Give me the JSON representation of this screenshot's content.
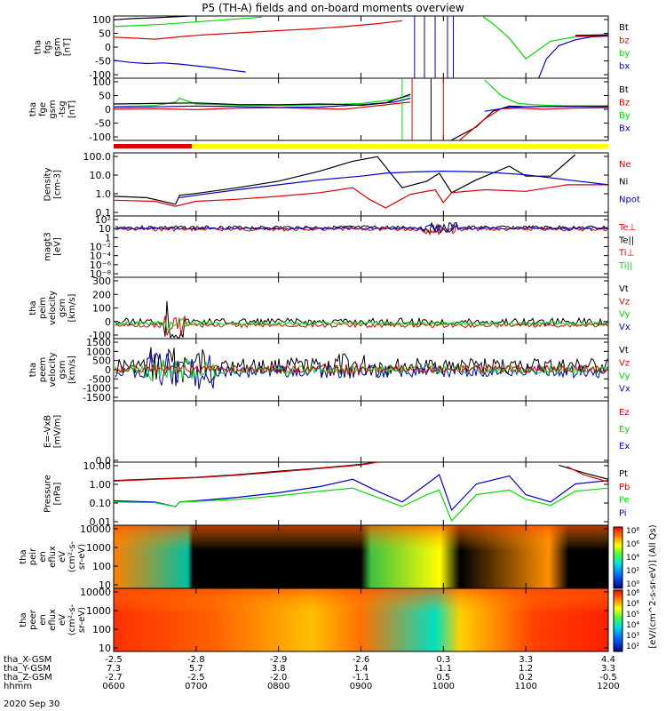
{
  "title": "P5 (TH-A) fields and on-board moments overview",
  "colors": {
    "black": "#000000",
    "red": "#e00000",
    "green": "#00dd00",
    "blue": "#0000cc",
    "yellow": "#ffff00"
  },
  "chart_data": {
    "type": "line",
    "x_ticks": [
      "0600",
      "0700",
      "0800",
      "0900",
      "1000",
      "1100",
      "1200"
    ],
    "x_range_hours": [
      6,
      12
    ],
    "date_label": "2020 Sep 30",
    "ephemeris": [
      {
        "label": "tha_X-GSM",
        "values": [
          "-2.5",
          "-2.8",
          "-2.9",
          "-2.6",
          "0.3",
          "3.3",
          "4.4"
        ]
      },
      {
        "label": "tha_Y-GSM",
        "values": [
          "7.3",
          "5.7",
          "3.8",
          "1.4",
          "-1.1",
          "1.2",
          "3.3"
        ]
      },
      {
        "label": "tha_Z-GSM",
        "values": [
          "-2.7",
          "-2.5",
          "-2.0",
          "-1.1",
          "0.5",
          "0.2",
          "-0.5"
        ]
      },
      {
        "label": "hhmm",
        "values": [
          "0600",
          "0700",
          "0800",
          "0900",
          "1000",
          "1100",
          "1200"
        ]
      }
    ],
    "panels": [
      {
        "id": "fgs",
        "ylabel": [
          "tha",
          "fgs",
          "gsm",
          "[nT]"
        ],
        "yticks": [
          "100",
          "50",
          "0",
          "-50",
          "-100"
        ],
        "ylim": [
          -100,
          100
        ],
        "legend": [
          {
            "name": "Bt",
            "color": "black"
          },
          {
            "name": "bz",
            "color": "red"
          },
          {
            "name": "by",
            "color": "green"
          },
          {
            "name": "bx",
            "color": "blue"
          }
        ],
        "series": [
          {
            "color": "black",
            "x": [
              6.0,
              6.2,
              6.5,
              6.8,
              7.0,
              7.3,
              7.6,
              7.8
            ],
            "y": [
              93,
              97,
              100,
              104,
              107,
              110,
              113,
              115
            ]
          },
          {
            "color": "green",
            "x": [
              6.0,
              6.3,
              6.6,
              6.9,
              7.2,
              7.5,
              7.8
            ],
            "y": [
              70,
              74,
              78,
              84,
              90,
              96,
              102
            ]
          },
          {
            "color": "red",
            "x": [
              6.0,
              6.3,
              6.5,
              6.8,
              7.0,
              7.3,
              7.6,
              7.8,
              8.0,
              8.4,
              8.8,
              9.2,
              9.5
            ],
            "y": [
              34,
              30,
              27,
              35,
              40,
              45,
              50,
              53,
              56,
              62,
              70,
              80,
              90
            ]
          },
          {
            "color": "blue",
            "x": [
              6.0,
              6.2,
              6.4,
              6.6,
              6.8,
              7.0,
              7.2,
              7.4,
              7.6
            ],
            "y": [
              -45,
              -52,
              -56,
              -54,
              -58,
              -64,
              -70,
              -78,
              -85
            ]
          },
          {
            "color": "green",
            "x": [
              10.2,
              10.4,
              10.6,
              10.8,
              11.0,
              11.1,
              11.3,
              11.6,
              12.0
            ],
            "y": [
              160,
              120,
              80,
              30,
              -40,
              -20,
              20,
              35,
              38
            ]
          },
          {
            "color": "blue",
            "x": [
              11.15,
              11.25,
              11.4,
              11.6,
              11.8,
              12.0
            ],
            "y": [
              -110,
              -40,
              5,
              25,
              35,
              38
            ]
          },
          {
            "color": "red",
            "x": [
              11.6,
              11.8,
              12.0
            ],
            "y": [
              38,
              39,
              40
            ]
          },
          {
            "color": "black",
            "x": [
              11.6,
              11.8,
              12.0
            ],
            "y": [
              40,
              41,
              42
            ]
          }
        ]
      },
      {
        "id": "fge",
        "ylabel": [
          "tha",
          "fge",
          "gsm",
          "-tsg",
          "[nT]"
        ],
        "yticks": [
          "100",
          "50",
          "0",
          "-50",
          "-100"
        ],
        "ylim": [
          -125,
          100
        ],
        "legend": [
          {
            "name": "Bt",
            "color": "black"
          },
          {
            "name": "Bz",
            "color": "red"
          },
          {
            "name": "By",
            "color": "green"
          },
          {
            "name": "Bx",
            "color": "blue"
          }
        ],
        "series": [
          {
            "color": "green",
            "x": [
              6.0,
              6.5,
              6.75,
              6.8,
              7.0,
              7.5,
              8.0,
              8.5,
              9.0,
              9.4,
              9.6
            ],
            "y": [
              -2,
              2,
              15,
              30,
              8,
              4,
              2,
              5,
              10,
              25,
              40
            ]
          },
          {
            "color": "blue",
            "x": [
              6.0,
              6.5,
              7.0,
              7.5,
              8.0,
              8.5,
              9.0,
              9.4,
              9.6
            ],
            "y": [
              -5,
              -3,
              0,
              -2,
              -5,
              -4,
              5,
              15,
              30
            ]
          },
          {
            "color": "red",
            "x": [
              6.0,
              6.5,
              7.0,
              7.5,
              8.0,
              8.5,
              8.8,
              9.0,
              9.3,
              9.6
            ],
            "y": [
              -12,
              -10,
              -14,
              -8,
              -6,
              -10,
              -12,
              -5,
              5,
              15
            ]
          },
          {
            "color": "black",
            "x": [
              6.0,
              6.5,
              7.0,
              7.5,
              8.0,
              8.5,
              8.8,
              9.0,
              9.3,
              9.6
            ],
            "y": [
              8,
              10,
              12,
              6,
              5,
              8,
              6,
              3,
              12,
              45
            ]
          },
          {
            "color": "green",
            "x": [
              10.5,
              10.7,
              10.9,
              11.1,
              11.5,
              12.0
            ],
            "y": [
              100,
              40,
              10,
              5,
              0,
              0
            ]
          },
          {
            "color": "black",
            "x": [
              10.1,
              10.4,
              10.6,
              10.8,
              11.0,
              11.5,
              12.0
            ],
            "y": [
              -130,
              -80,
              -20,
              0,
              -3,
              0,
              0
            ]
          },
          {
            "color": "red",
            "x": [
              10.2,
              10.5,
              10.7,
              10.9,
              11.2,
              11.6,
              12.0
            ],
            "y": [
              -130,
              -50,
              -10,
              -8,
              -12,
              -8,
              -6
            ]
          },
          {
            "color": "blue",
            "x": [
              10.5,
              10.8,
              11.2,
              11.6,
              12.0
            ],
            "y": [
              -20,
              -5,
              -2,
              -2,
              -2
            ]
          }
        ]
      },
      {
        "id": "density",
        "ylabel": [
          "Density",
          "[cm-3]"
        ],
        "yticks": [
          "100.0",
          "10.0",
          "1.0",
          "0.1"
        ],
        "ylog": true,
        "ylim": [
          0.05,
          200
        ],
        "legend": [
          {
            "name": "Ne",
            "color": "red"
          },
          {
            "name": "Ni",
            "color": "black"
          },
          {
            "name": "Npot",
            "color": "blue"
          }
        ],
        "series": [
          {
            "color": "black",
            "x": [
              6.0,
              6.4,
              6.75,
              6.8,
              7.0,
              7.5,
              8.0,
              8.5,
              8.9,
              9.2,
              9.5,
              9.8,
              9.95,
              10.1,
              10.4,
              10.8,
              11.0,
              11.3,
              11.6
            ],
            "y": [
              0.6,
              0.5,
              0.2,
              0.7,
              0.9,
              2,
              5,
              20,
              80,
              150,
              2,
              5,
              15,
              1,
              6,
              40,
              10,
              10,
              200
            ]
          },
          {
            "color": "red",
            "x": [
              6.0,
              6.5,
              6.75,
              7.0,
              7.5,
              8.0,
              8.5,
              8.9,
              9.1,
              9.3,
              9.6,
              9.9,
              10.0,
              10.1,
              10.5,
              11.0,
              11.5,
              12.0
            ],
            "y": [
              0.35,
              0.3,
              0.15,
              0.3,
              0.4,
              0.6,
              1,
              2,
              0.4,
              0.12,
              0.8,
              1.5,
              0.25,
              1,
              1.5,
              1.2,
              3,
              3
            ]
          },
          {
            "color": "blue",
            "x": [
              6.8,
              7.0,
              7.5,
              8.0,
              8.5,
              9.0,
              9.3,
              9.6,
              10.0,
              10.5,
              11.0,
              11.5,
              12.0
            ],
            "y": [
              0.5,
              0.7,
              1.5,
              3,
              6,
              10,
              15,
              18,
              20,
              18,
              12,
              6,
              3
            ]
          }
        ]
      },
      {
        "id": "magt3",
        "ylabel": [
          "magt3",
          "[eV]"
        ],
        "yticks": [
          "10²",
          "10",
          "1",
          "10⁻²",
          "10⁻⁴",
          "10⁻⁶",
          "10⁻⁸"
        ],
        "legend": [
          {
            "name": "Te⊥",
            "color": "red"
          },
          {
            "name": "Te||",
            "color": "black"
          },
          {
            "name": "Ti⊥",
            "color": "red"
          },
          {
            "name": "Ti||",
            "color": "green"
          }
        ]
      },
      {
        "id": "peim",
        "ylabel": [
          "tha",
          "peim",
          "velocity",
          "gsm",
          "[km/s]"
        ],
        "yticks": [
          "300",
          "200",
          "100",
          "0",
          "-100"
        ],
        "ylim": [
          -100,
          320
        ],
        "legend": [
          {
            "name": "Vt",
            "color": "black"
          },
          {
            "name": "Vz",
            "color": "red"
          },
          {
            "name": "Vy",
            "color": "green"
          },
          {
            "name": "Vx",
            "color": "blue"
          }
        ]
      },
      {
        "id": "peem",
        "ylabel": [
          "tha",
          "peem",
          "velocity",
          "gsm",
          "[km/s]"
        ],
        "yticks": [
          "1500",
          "1000",
          "500",
          "0",
          "-500",
          "-1000",
          "-1500"
        ],
        "ylim": [
          -1500,
          1500
        ],
        "legend": [
          {
            "name": "Vt",
            "color": "black"
          },
          {
            "name": "Vz",
            "color": "red"
          },
          {
            "name": "Vy",
            "color": "green"
          },
          {
            "name": "Vx",
            "color": "blue"
          }
        ]
      },
      {
        "id": "efield",
        "ylabel": [
          "E=-VxB",
          "[mV/m]"
        ],
        "yticks": [
          "0.0"
        ],
        "legend": [
          {
            "name": "Ez",
            "color": "red"
          },
          {
            "name": "Ey",
            "color": "green"
          },
          {
            "name": "Ex",
            "color": "blue"
          }
        ]
      },
      {
        "id": "pressure",
        "ylabel": [
          "Pressure",
          "[nPa]"
        ],
        "yticks": [
          "10.00",
          "1.00",
          "0.10",
          "0.01"
        ],
        "ylog": true,
        "ylim": [
          0.004,
          30
        ],
        "legend": [
          {
            "name": "Pt",
            "color": "black"
          },
          {
            "name": "Pb",
            "color": "red"
          },
          {
            "name": "Pe",
            "color": "green"
          },
          {
            "name": "Pi",
            "color": "blue"
          }
        ],
        "series": [
          {
            "color": "black",
            "x": [
              6.0,
              6.5,
              7.0,
              7.5,
              8.0,
              8.5,
              9.0,
              9.2
            ],
            "y": [
              2.5,
              3.2,
              4,
              6,
              10,
              16,
              28,
              40
            ]
          },
          {
            "color": "red",
            "x": [
              6.0,
              6.5,
              7.0,
              7.5,
              8.0,
              8.5,
              9.0,
              9.2
            ],
            "y": [
              2.3,
              3.0,
              3.8,
              5.5,
              9,
              15,
              26,
              38
            ]
          },
          {
            "color": "blue",
            "x": [
              6.0,
              6.5,
              6.75,
              6.8,
              7.0,
              7.5,
              8.0,
              8.5,
              8.9,
              9.2,
              9.5,
              9.8,
              9.95,
              10.1,
              10.4,
              10.8,
              11.0,
              11.3,
              11.6,
              12.0
            ],
            "y": [
              0.12,
              0.1,
              0.05,
              0.1,
              0.12,
              0.2,
              0.4,
              1,
              3,
              0.5,
              0.1,
              1.5,
              6,
              0.03,
              1.5,
              5,
              0.3,
              0.1,
              1.5,
              2.5
            ]
          },
          {
            "color": "green",
            "x": [
              6.0,
              6.5,
              6.75,
              6.8,
              7.0,
              7.5,
              8.0,
              8.5,
              8.9,
              9.2,
              9.5,
              9.8,
              9.95,
              10.1,
              10.4,
              10.8,
              11.0,
              11.3,
              11.6,
              12.0
            ],
            "y": [
              0.1,
              0.09,
              0.05,
              0.1,
              0.11,
              0.15,
              0.25,
              0.5,
              0.8,
              0.2,
              0.05,
              0.3,
              0.6,
              0.006,
              0.3,
              0.6,
              0.15,
              0.06,
              0.5,
              0.8
            ]
          },
          {
            "color": "black",
            "x": [
              11.4,
              11.7,
              12.0
            ],
            "y": [
              25,
              8,
              3
            ]
          },
          {
            "color": "red",
            "x": [
              11.5,
              11.7,
              12.0
            ],
            "y": [
              20,
              6,
              2
            ]
          }
        ]
      },
      {
        "id": "peir",
        "ylabel": [
          "tha",
          "peir",
          "en",
          "eflux",
          "eV",
          "(cm²-s-",
          "sr-eV)"
        ],
        "yticks": [
          "10000",
          "1000",
          "100",
          "10"
        ],
        "type": "heatmap"
      },
      {
        "id": "peer",
        "ylabel": [
          "tha",
          "peer",
          "en",
          "eflux",
          "eV",
          "(cm²-s-",
          "sr-eV)"
        ],
        "yticks": [
          "10000",
          "1000",
          "100",
          "10"
        ],
        "type": "heatmap"
      }
    ],
    "colorbar": {
      "label": "[eV/(cm^2-s-sr-eV)] (All Qs)",
      "top_ticks": [
        "10⁸",
        "10⁶",
        "10⁴",
        "10²",
        "10⁰"
      ],
      "bottom_ticks": [
        "10⁸",
        "10⁶",
        "10⁵",
        "10⁴",
        "10³",
        "10²"
      ]
    }
  }
}
